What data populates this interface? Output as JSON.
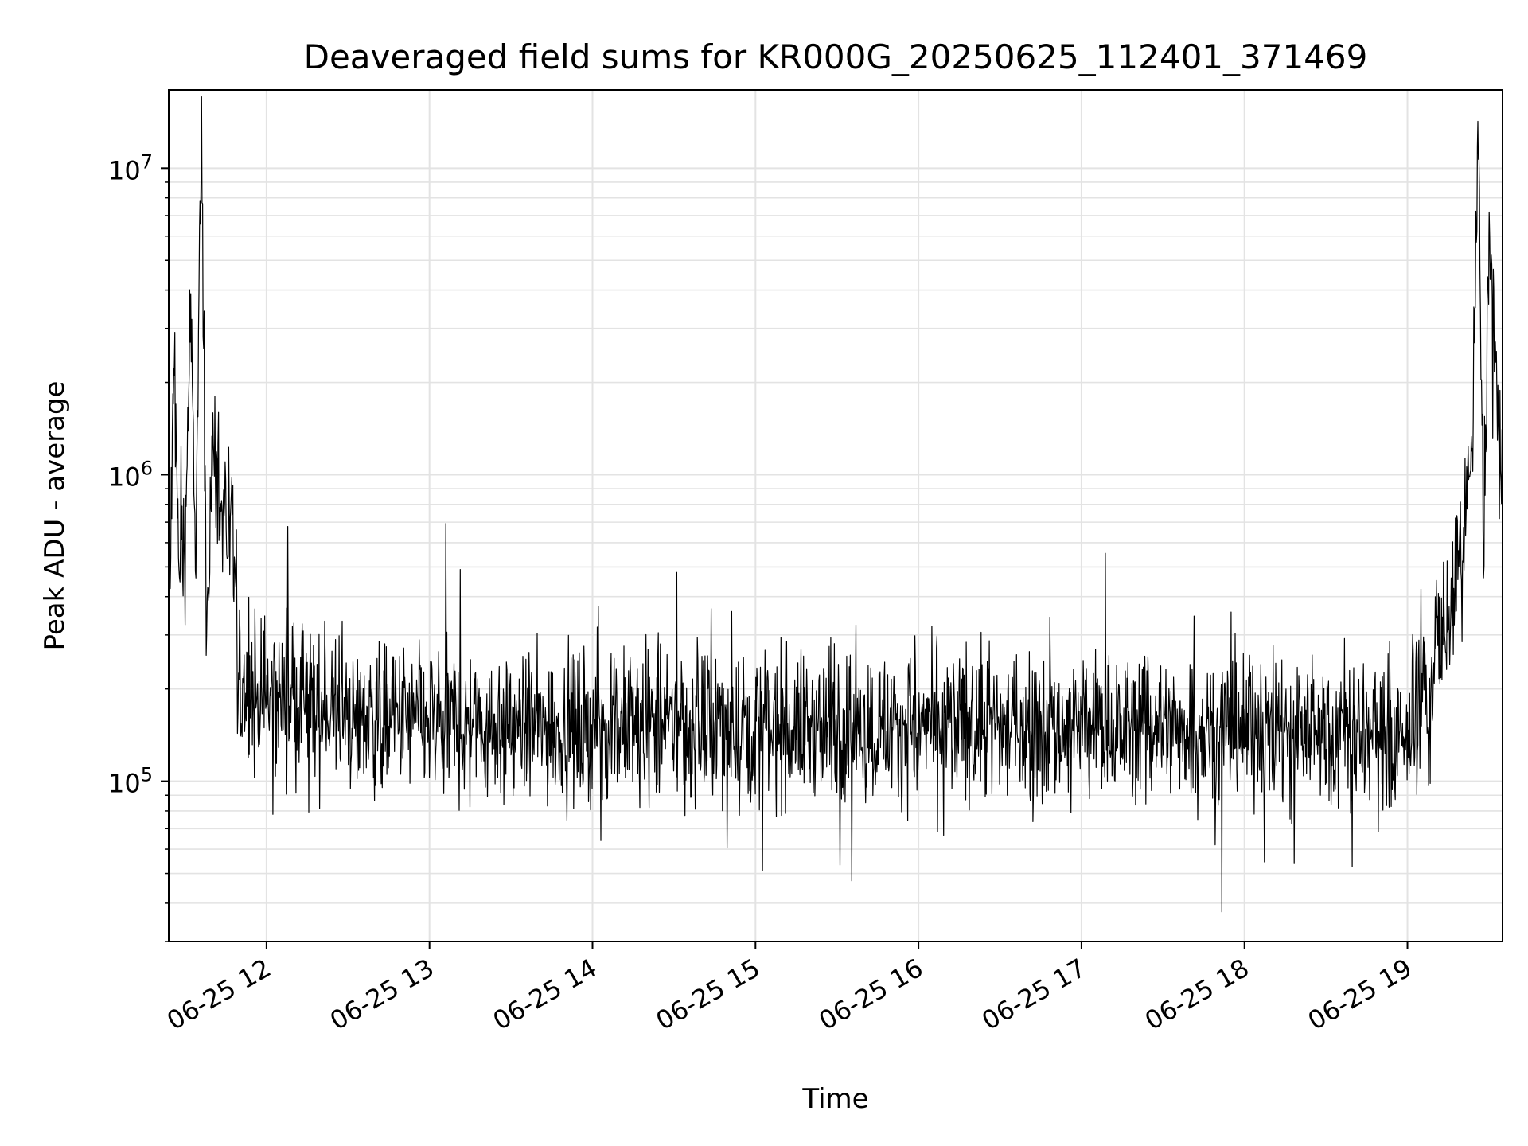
{
  "chart_data": {
    "type": "line",
    "title": "Deaveraged field sums for KR000G_20250625_112401_371469",
    "xlabel": "Time",
    "ylabel": "Peak ADU - average",
    "yscale": "log",
    "ylim": [
      30000,
      18000000
    ],
    "xlim": [
      "2025-06-25 11:24",
      "2025-06-25 19:35"
    ],
    "grid": true,
    "x_ticks": [
      {
        "value": "2025-06-25 12:00",
        "label": "06-25 12"
      },
      {
        "value": "2025-06-25 13:00",
        "label": "06-25 13"
      },
      {
        "value": "2025-06-25 14:00",
        "label": "06-25 14"
      },
      {
        "value": "2025-06-25 15:00",
        "label": "06-25 15"
      },
      {
        "value": "2025-06-25 16:00",
        "label": "06-25 16"
      },
      {
        "value": "2025-06-25 17:00",
        "label": "06-25 17"
      },
      {
        "value": "2025-06-25 18:00",
        "label": "06-25 18"
      },
      {
        "value": "2025-06-25 19:00",
        "label": "06-25 19"
      }
    ],
    "y_ticks": [
      {
        "value": 100000,
        "base": "10",
        "exp": "5"
      },
      {
        "value": 1000000,
        "base": "10",
        "exp": "6"
      },
      {
        "value": 10000000,
        "base": "10",
        "exp": "7"
      }
    ],
    "series": [
      {
        "color": "#000000",
        "x": [
          "2025-06-25 11:24",
          "2025-06-25 11:26",
          "2025-06-25 11:28",
          "2025-06-25 11:30",
          "2025-06-25 11:32",
          "2025-06-25 11:34",
          "2025-06-25 11:36",
          "2025-06-25 11:38",
          "2025-06-25 11:40",
          "2025-06-25 11:45",
          "2025-06-25 11:50",
          "2025-06-25 11:55",
          "2025-06-25 12:00",
          "2025-06-25 12:10",
          "2025-06-25 12:20",
          "2025-06-25 12:30",
          "2025-06-25 12:45",
          "2025-06-25 13:00",
          "2025-06-25 13:30",
          "2025-06-25 14:00",
          "2025-06-25 14:30",
          "2025-06-25 15:00",
          "2025-06-25 15:30",
          "2025-06-25 16:00",
          "2025-06-25 16:30",
          "2025-06-25 17:00",
          "2025-06-25 17:30",
          "2025-06-25 18:00",
          "2025-06-25 18:30",
          "2025-06-25 19:00",
          "2025-06-25 19:05",
          "2025-06-25 19:10",
          "2025-06-25 19:15",
          "2025-06-25 19:20",
          "2025-06-25 19:24",
          "2025-06-25 19:26",
          "2025-06-25 19:28",
          "2025-06-25 19:30",
          "2025-06-25 19:32",
          "2025-06-25 19:35"
        ],
        "y": [
          280000,
          2100000,
          450000,
          600000,
          3400000,
          500000,
          13500000,
          300000,
          1100000,
          700000,
          400000,
          300000,
          220000,
          190000,
          170000,
          160000,
          160000,
          155000,
          150000,
          150000,
          150000,
          150000,
          150000,
          150000,
          150000,
          150000,
          150000,
          150000,
          150000,
          130000,
          250000,
          300000,
          350000,
          500000,
          1300000,
          12200000,
          600000,
          6000000,
          2700000,
          700000
        ],
        "notes_spikes_low": [
          38000,
          40000,
          45000
        ]
      }
    ]
  }
}
